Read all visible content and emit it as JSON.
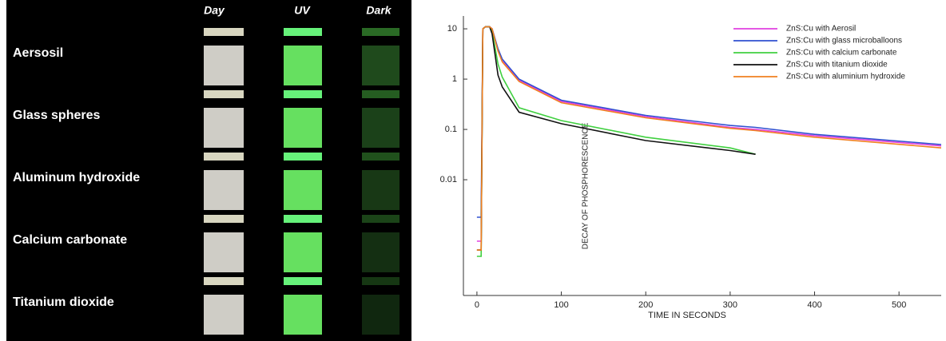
{
  "photo_panel": {
    "columns": [
      "Day",
      "UV",
      "Dark"
    ],
    "rows": [
      "Aersosil",
      "Glass spheres",
      "Aluminum hydroxide",
      "Calcium carbonate",
      "Titanium dioxide"
    ]
  },
  "chart_data": {
    "type": "line",
    "y_label": "DECAY OF PHOSPHORESCENCE",
    "x_label": "TIME IN SECONDS",
    "log_y": true,
    "legend": "upper right",
    "x": [
      0,
      5,
      7,
      10,
      15,
      18,
      25,
      30,
      50,
      100,
      200,
      300,
      330,
      400,
      550
    ],
    "series": [
      {
        "name": "ZnS:Cu with Aerosil",
        "color": "#e040e0",
        "values": [
          0.0006,
          0.0006,
          10,
          11,
          11,
          10,
          3.8,
          2.3,
          0.95,
          0.36,
          0.18,
          0.11,
          0.1,
          0.075,
          0.047
        ]
      },
      {
        "name": "ZnS:Cu with glass microballoons",
        "color": "#3050d0",
        "values": [
          0.0018,
          0.0018,
          10,
          11,
          11,
          10,
          4,
          2.5,
          1.0,
          0.38,
          0.19,
          0.12,
          0.11,
          0.08,
          0.05
        ]
      },
      {
        "name": "ZnS:Cu with calcium carbonate",
        "color": "#40d040",
        "values": [
          0.0003,
          0.0003,
          10,
          11,
          11,
          9,
          2,
          1.1,
          0.27,
          0.15,
          0.07,
          0.043,
          0.032,
          null,
          null
        ]
      },
      {
        "name": "ZnS:Cu with titanium dioxide",
        "color": "#111111",
        "values": [
          0.0004,
          0.0004,
          10,
          11,
          11,
          8,
          1.2,
          0.7,
          0.22,
          0.13,
          0.06,
          0.038,
          0.032,
          null,
          null
        ]
      },
      {
        "name": "ZnS:Cu with aluminium hydroxide",
        "color": "#f08020",
        "values": [
          0.0004,
          0.0004,
          10,
          11,
          11,
          10,
          3.6,
          2.2,
          0.9,
          0.34,
          0.17,
          0.105,
          0.095,
          0.07,
          0.043
        ]
      }
    ],
    "xlim": [
      -16,
      550
    ],
    "ylim": [
      5e-05,
      18
    ],
    "xticks": [
      0,
      100,
      200,
      300,
      400,
      500
    ],
    "yticks": [
      10,
      1,
      0.1,
      0.01
    ]
  }
}
